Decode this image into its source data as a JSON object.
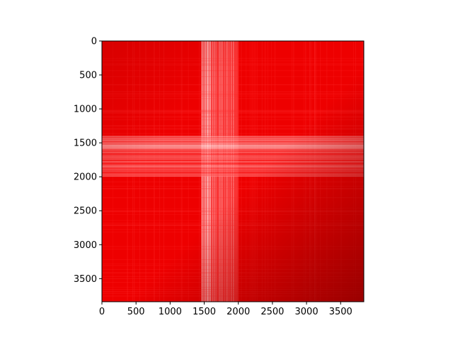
{
  "chart_data": {
    "type": "heatmap",
    "title": "",
    "xlabel": "",
    "ylabel": "",
    "xlim": [
      0,
      3840
    ],
    "ylim": [
      3840,
      0
    ],
    "x_ticks": [
      "0",
      "500",
      "1000",
      "1500",
      "2000",
      "2500",
      "3000",
      "3500"
    ],
    "y_ticks": [
      "0",
      "500",
      "1000",
      "1500",
      "2000",
      "2500",
      "3000",
      "3500"
    ],
    "colormap": [
      "#ffffff",
      "#ff0000",
      "#8b0000"
    ],
    "grid": false,
    "legend": "none",
    "bands": [
      {
        "axis": "x",
        "range": [
          1450,
          1600
        ],
        "intensity": 0.05
      },
      {
        "axis": "x",
        "range": [
          1600,
          2000
        ],
        "intensity": 0.35
      },
      {
        "axis": "y",
        "range": [
          1400,
          1500
        ],
        "intensity": 0.3
      },
      {
        "axis": "y",
        "range": [
          1500,
          1600
        ],
        "intensity": 0.05
      },
      {
        "axis": "y",
        "range": [
          1600,
          2000
        ],
        "intensity": 0.4
      }
    ]
  }
}
